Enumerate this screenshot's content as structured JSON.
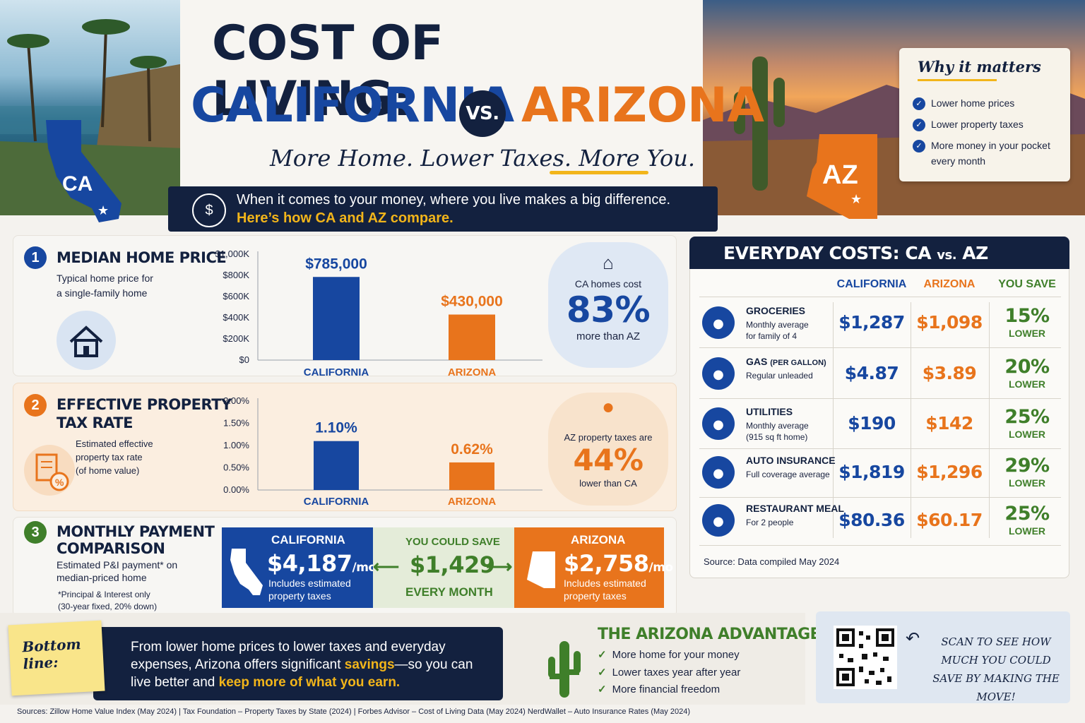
{
  "header": {
    "title_line1": "COST OF LIVING:",
    "title_ca": "CALIFORNIA",
    "title_vs": "VS.",
    "title_az": "ARIZONA",
    "tagline": "More Home. Lower Taxes. More You.",
    "ca_badge": "CA",
    "az_badge": "AZ",
    "intro_line1": "When it comes to your money, where you live makes a big difference.",
    "intro_line2": "Here’s how CA and AZ compare."
  },
  "why": {
    "title": "Why it matters",
    "items": [
      "Lower home prices",
      "Lower property taxes",
      "More money in your pocket",
      "every month"
    ]
  },
  "colors": {
    "ca": "#1747a0",
    "az": "#e8741c",
    "navy": "#13213f",
    "green": "#3f7f2a",
    "gold": "#f2b51a"
  },
  "section1": {
    "num": "1",
    "title": "MEDIAN HOME PRICE",
    "sub1": "Typical home price for",
    "sub2": "a single-family home",
    "icon": "house-icon",
    "callout_top": "CA homes cost",
    "callout_big": "83%",
    "callout_bottom": "more than AZ"
  },
  "section2": {
    "num": "2",
    "title1": "EFFECTIVE PROPERTY",
    "title2": "TAX RATE",
    "sub1": "Estimated effective",
    "sub2": "property tax rate",
    "sub3": "(of home value)",
    "icon": "tax-document-icon",
    "callout_top": "AZ property taxes are",
    "callout_big": "44%",
    "callout_bottom": "lower than CA"
  },
  "section3": {
    "num": "3",
    "title1": "MONTHLY PAYMENT",
    "title2": "COMPARISON",
    "sub1": "Estimated P&I payment* on",
    "sub2": "median-priced home",
    "note1": "*Principal & Interest only",
    "note2": "(30-year fixed, 20% down)",
    "ca_label": "CALIFORNIA",
    "ca_amount": "$4,187",
    "ca_unit": "/mo",
    "ca_note1": "Includes estimated",
    "ca_note2": "property taxes",
    "save_label": "YOU COULD SAVE",
    "save_amount": "$1,429",
    "save_sub": "EVERY MONTH",
    "az_label": "ARIZONA",
    "az_amount": "$2,758",
    "az_unit": "/mo",
    "az_note1": "Includes estimated",
    "az_note2": "property taxes"
  },
  "chart_data": [
    {
      "type": "bar",
      "title": "MEDIAN HOME PRICE",
      "categories": [
        "CALIFORNIA",
        "ARIZONA"
      ],
      "values": [
        785000,
        430000
      ],
      "data_labels": [
        "$785,000",
        "$430,000"
      ],
      "ylim": [
        0,
        1000000
      ],
      "yticks": [
        0,
        200000,
        400000,
        600000,
        800000,
        1000000
      ],
      "ytick_labels": [
        "$0",
        "$200K",
        "$400K",
        "$600K",
        "$800K",
        "$1,000K"
      ],
      "colors": [
        "#1747a0",
        "#e8741c"
      ]
    },
    {
      "type": "bar",
      "title": "EFFECTIVE PROPERTY TAX RATE",
      "categories": [
        "CALIFORNIA",
        "ARIZONA"
      ],
      "values": [
        1.1,
        0.62
      ],
      "data_labels": [
        "1.10%",
        "0.62%"
      ],
      "ylim": [
        0,
        2.0
      ],
      "yticks": [
        0,
        0.5,
        1.0,
        1.5,
        2.0
      ],
      "ytick_labels": [
        "0.00%",
        "0.50%",
        "1.00%",
        "1.50%",
        "2.00%"
      ],
      "colors": [
        "#1747a0",
        "#e8741c"
      ]
    }
  ],
  "costs": {
    "title_main": "EVERYDAY COSTS: CA ",
    "title_vs": "vs.",
    "title_az": " AZ",
    "col_ca": "CALIFORNIA",
    "col_az": "ARIZONA",
    "col_save": "YOU SAVE",
    "rows": [
      {
        "icon": "cart-icon",
        "name": "GROCERIES",
        "desc1": "Monthly average",
        "desc2": "for family of 4",
        "ca": "$1,287",
        "az": "$1,098",
        "pct": "15%",
        "pct_label": "LOWER"
      },
      {
        "icon": "fuel-pump-icon",
        "name": "GAS",
        "name_small": "(PER GALLON)",
        "desc1": "Regular unleaded",
        "desc2": "",
        "ca": "$4.87",
        "az": "$3.89",
        "pct": "20%",
        "pct_label": "LOWER"
      },
      {
        "icon": "lightbulb-icon",
        "name": "UTILITIES",
        "desc1": "Monthly average",
        "desc2": "(915 sq ft home)",
        "ca": "$190",
        "az": "$142",
        "pct": "25%",
        "pct_label": "LOWER"
      },
      {
        "icon": "car-icon",
        "name": "AUTO INSURANCE",
        "desc1": "Full coverage average",
        "desc2": "",
        "ca": "$1,819",
        "az": "$1,296",
        "pct": "29%",
        "pct_label": "LOWER"
      },
      {
        "icon": "fork-knife-icon",
        "name": "RESTAURANT MEAL",
        "desc1": "For 2 people",
        "desc2": "",
        "ca": "$80.36",
        "az": "$60.17",
        "pct": "25%",
        "pct_label": "LOWER"
      }
    ],
    "source_label": "Source:",
    "source_text": " Data compiled May 2024"
  },
  "bottom": {
    "sticky": "Bottom line:",
    "text_a": "From lower home prices to lower taxes and everyday expenses, Arizona offers significant ",
    "text_hl1": "savings",
    "text_b": "—so you can live better and ",
    "text_hl2": "keep more of what you earn.",
    "adv_title": "THE ARIZONA ADVANTAGE",
    "adv_items": [
      "More home for your money",
      "Lower taxes year after year",
      "More financial freedom"
    ],
    "scan_text": "SCAN TO SEE HOW MUCH YOU COULD SAVE BY MAKING THE MOVE!"
  },
  "sources": "Sources: Zillow Home Value Index (May 2024)  |  Tax Foundation – Property Taxes by State (2024)  |  Forbes Advisor – Cost of Living Data (May 2024)        NerdWallet – Auto Insurance Rates (May 2024)"
}
